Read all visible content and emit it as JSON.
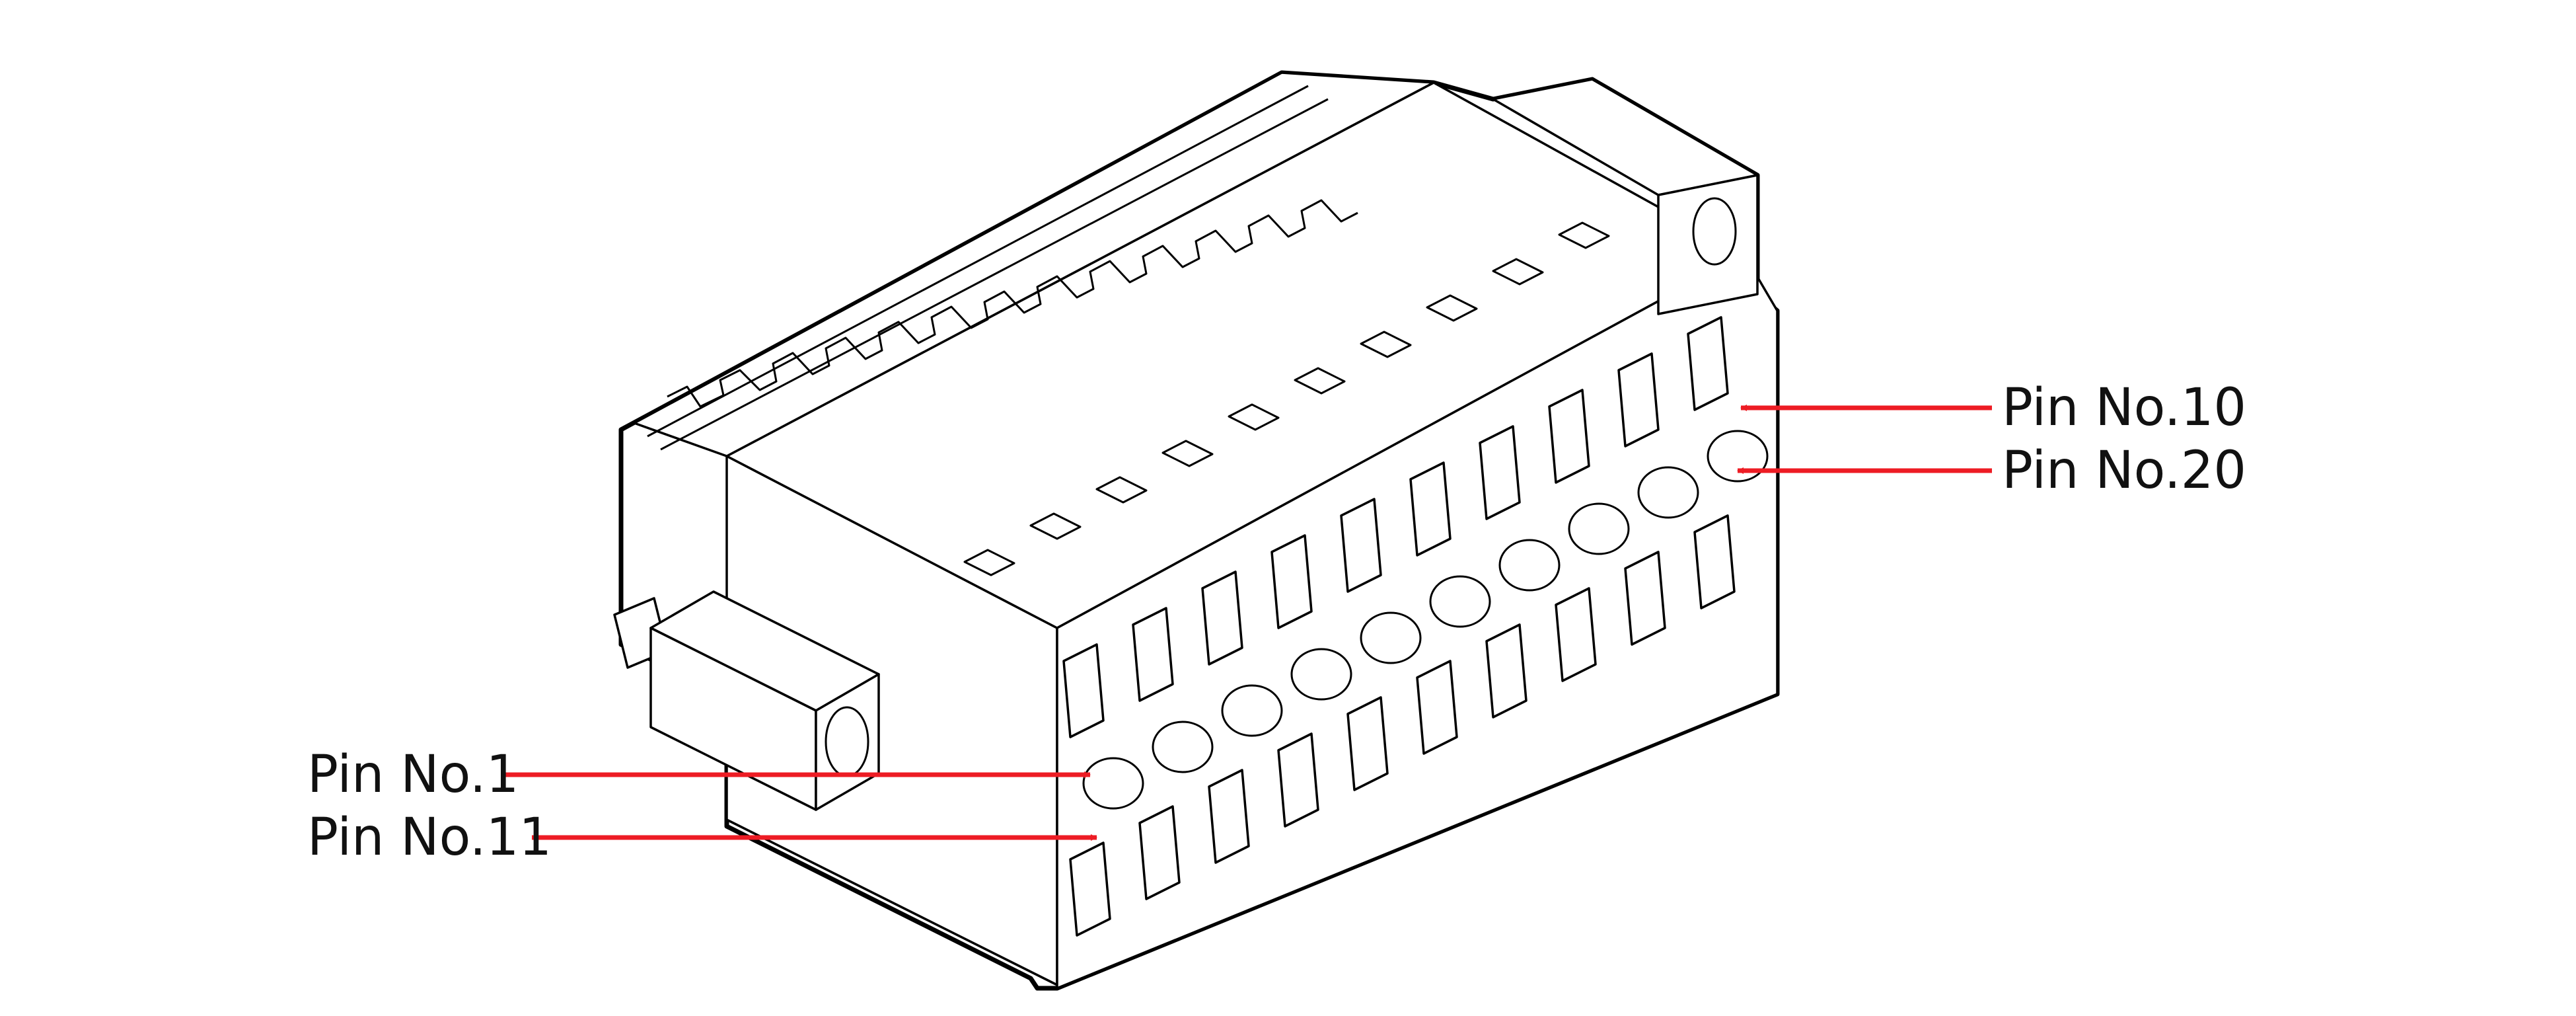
{
  "figure": {
    "arrow_color": "#ed1c24",
    "labels": {
      "pin1": "Pin No.1",
      "pin11": "Pin No.11",
      "pin10": "Pin No.10",
      "pin20": "Pin No.20"
    }
  }
}
